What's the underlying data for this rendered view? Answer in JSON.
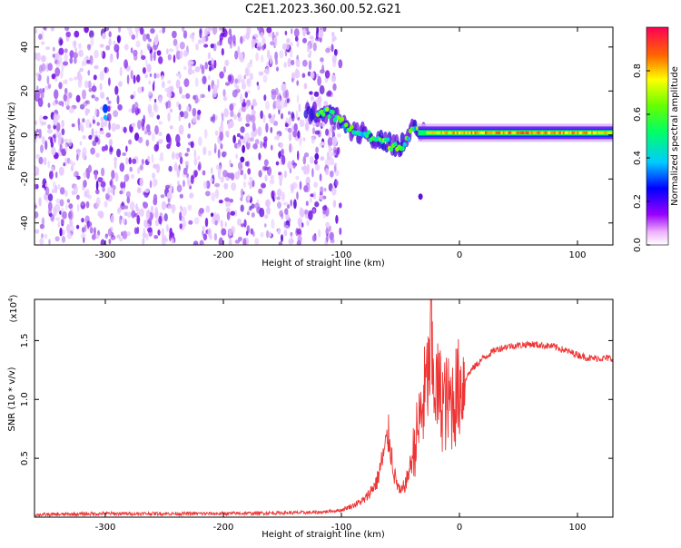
{
  "title": "C2E1.2023.360.00.52.G21",
  "chart_data": [
    {
      "type": "heatmap",
      "xlabel": "Height of straight line (km)",
      "ylabel": "Frequency (Hz)",
      "xlim": [
        -360,
        130
      ],
      "ylim": [
        -50,
        49
      ],
      "xticks": [
        -300,
        -200,
        -100,
        0,
        100
      ],
      "yticks": [
        -40,
        -20,
        0,
        20,
        40
      ],
      "colorbar": {
        "label": "Normalized spectral amplitude",
        "range": [
          0.0,
          1.0
        ],
        "ticks": [
          0.0,
          0.2,
          0.4,
          0.6,
          0.8
        ],
        "colormap": [
          "#ffffff",
          "#ff00ff",
          "#8800ff",
          "#0000ff",
          "#00ffff",
          "#00ff00",
          "#ffff00",
          "#ff8800",
          "#ff0000"
        ]
      },
      "noise_region_x": [
        -360,
        -110
      ],
      "signal_track": [
        {
          "x": -300,
          "f": 12,
          "amp": 0.35
        },
        {
          "x": -110,
          "f": 10,
          "amp": 0.45
        },
        {
          "x": -100,
          "f": 6,
          "amp": 0.55
        },
        {
          "x": -90,
          "f": 2,
          "amp": 0.5
        },
        {
          "x": -80,
          "f": 0,
          "amp": 0.45
        },
        {
          "x": -70,
          "f": -2,
          "amp": 0.45
        },
        {
          "x": -60,
          "f": -4,
          "amp": 0.4
        },
        {
          "x": -50,
          "f": -6,
          "amp": 0.4
        },
        {
          "x": -40,
          "f": 3,
          "amp": 0.5
        },
        {
          "x": -30,
          "f": 1,
          "amp": 0.7
        },
        {
          "x": -20,
          "f": 1,
          "amp": 0.75
        },
        {
          "x": 0,
          "f": 1,
          "amp": 0.8
        },
        {
          "x": 50,
          "f": 1,
          "amp": 0.85
        },
        {
          "x": 100,
          "f": 1,
          "amp": 0.8
        },
        {
          "x": 130,
          "f": 1,
          "amp": 0.75
        }
      ],
      "outlier_point": {
        "x": -33,
        "f": -28
      }
    },
    {
      "type": "line",
      "xlabel": "Height of straight line (km)",
      "ylabel": "SNR (10 * v/v)",
      "y_multiplier": "(x10",
      "y_multiplier_exp": "4",
      "y_multiplier_close": ")",
      "xlim": [
        -360,
        130
      ],
      "ylim": [
        0,
        1.85
      ],
      "xticks": [
        -300,
        -200,
        -100,
        0,
        100
      ],
      "yticks": [
        0.5,
        1.0,
        1.5
      ],
      "ytick_labels": [
        "0.5",
        "1.0",
        "1.5"
      ],
      "series": [
        {
          "color": "#ee3333",
          "x": [
            -360,
            -300,
            -200,
            -120,
            -100,
            -90,
            -80,
            -70,
            -65,
            -60,
            -55,
            -50,
            -45,
            -40,
            -35,
            -30,
            -25,
            -20,
            -15,
            -10,
            -5,
            0,
            10,
            20,
            30,
            40,
            60,
            80,
            100,
            110,
            130
          ],
          "y": [
            0.02,
            0.03,
            0.03,
            0.04,
            0.06,
            0.1,
            0.15,
            0.3,
            0.5,
            0.7,
            0.35,
            0.2,
            0.3,
            0.5,
            0.75,
            1.0,
            1.3,
            1.1,
            1.0,
            0.95,
            1.0,
            1.1,
            1.25,
            1.35,
            1.42,
            1.45,
            1.47,
            1.45,
            1.38,
            1.35,
            1.35
          ]
        }
      ]
    }
  ]
}
